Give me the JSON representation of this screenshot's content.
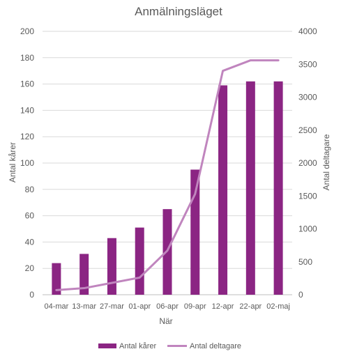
{
  "chart_data": {
    "type": "bar",
    "title": "Anmälningsläget",
    "xlabel": "När",
    "categories": [
      "04-mar",
      "13-mar",
      "27-mar",
      "01-apr",
      "06-apr",
      "09-apr",
      "12-apr",
      "22-apr",
      "02-maj"
    ],
    "y_left": {
      "label": "Antal kårer",
      "ylim": [
        0,
        200
      ],
      "ticks": [
        0,
        20,
        40,
        60,
        80,
        100,
        120,
        140,
        160,
        180,
        200
      ]
    },
    "y_right": {
      "label": "Antal deltagare",
      "ylim": [
        0,
        4000
      ],
      "ticks": [
        0,
        500,
        1000,
        1500,
        2000,
        2500,
        3000,
        3500,
        4000
      ]
    },
    "series": [
      {
        "name": "Antal kårer",
        "type": "bar",
        "axis": "left",
        "color": "#8B2583",
        "values": [
          24,
          31,
          43,
          51,
          65,
          95,
          159,
          162,
          162
        ]
      },
      {
        "name": "Antal deltagare",
        "type": "line",
        "axis": "right",
        "color": "#C085BE",
        "values": [
          70,
          100,
          180,
          260,
          670,
          1530,
          3400,
          3560,
          3560
        ]
      }
    ],
    "grid": true,
    "legend_position": "bottom"
  }
}
